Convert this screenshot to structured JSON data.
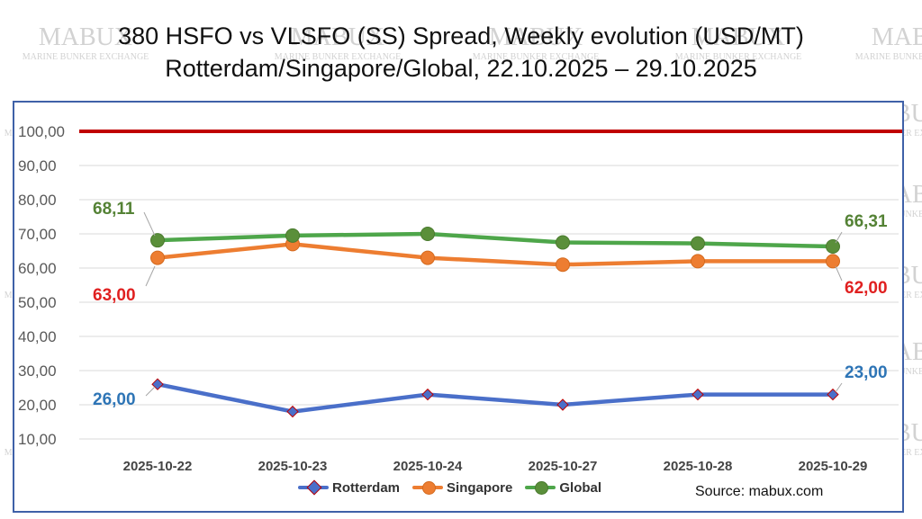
{
  "title_line1": "380 HSFO vs VLSFO (SS) Spread, Weekly evolution (USD/MT)",
  "title_line2": "Rotterdam/Singapore/Global, 22.10.2025 – 29.10.2025",
  "watermark": {
    "word": "MABUX",
    "tagline": "MARINE BUNKER EXCHANGE"
  },
  "source": "Source: mabux.com",
  "colors": {
    "rotterdam": "#4a6fc9",
    "singapore": "#ed7d31",
    "global": "#4ea64a",
    "reference": "#c00000",
    "border": "#3f61a8"
  },
  "chart_data": {
    "type": "line",
    "categories": [
      "2025-10-22",
      "2025-10-23",
      "2025-10-24",
      "2025-10-27",
      "2025-10-28",
      "2025-10-29"
    ],
    "ylim": [
      10,
      100
    ],
    "yticks": [
      "10,00",
      "20,00",
      "30,00",
      "40,00",
      "50,00",
      "60,00",
      "70,00",
      "80,00",
      "90,00",
      "100,00"
    ],
    "reference_line": 100,
    "legend_position": "bottom",
    "grid": true,
    "series": [
      {
        "name": "Rotterdam",
        "marker": "diamond",
        "values": [
          26,
          18,
          23,
          20,
          23,
          23
        ],
        "start_label": "26,00",
        "end_label": "23,00"
      },
      {
        "name": "Singapore",
        "marker": "circle",
        "values": [
          63,
          67,
          63,
          61,
          62,
          62
        ],
        "start_label": "63,00",
        "end_label": "62,00"
      },
      {
        "name": "Global",
        "marker": "circle",
        "values": [
          68.11,
          69.5,
          70,
          67.5,
          67.2,
          66.31
        ],
        "start_label": "68,11",
        "end_label": "66,31"
      }
    ]
  }
}
